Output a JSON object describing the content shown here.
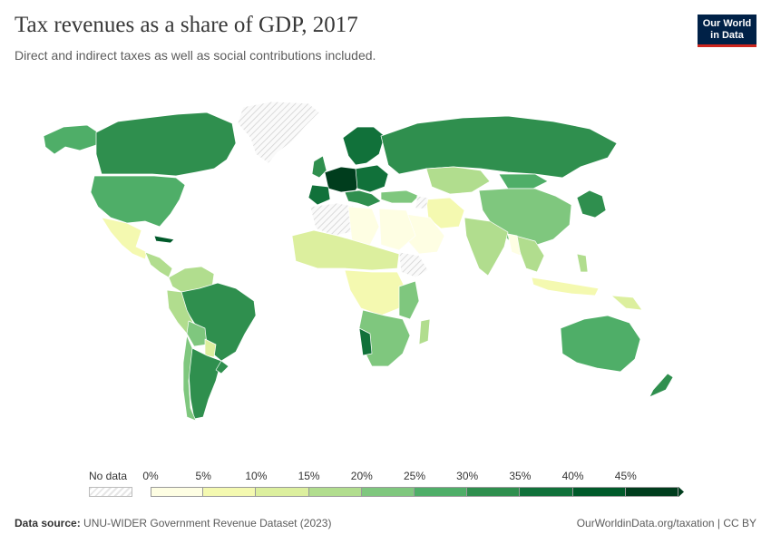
{
  "header": {
    "title": "Tax revenues as a share of GDP, 2017",
    "subtitle": "Direct and indirect taxes as well as social contributions included."
  },
  "logo": {
    "line1": "Our World",
    "line2": "in Data"
  },
  "legend": {
    "no_data_label": "No data",
    "ticks": [
      "0%",
      "5%",
      "10%",
      "15%",
      "20%",
      "25%",
      "30%",
      "35%",
      "40%",
      "45%"
    ],
    "bins": [
      {
        "from": 0,
        "to": 5,
        "color": "#fefee3"
      },
      {
        "from": 5,
        "to": 10,
        "color": "#f4f9b0"
      },
      {
        "from": 10,
        "to": 15,
        "color": "#dcef9e"
      },
      {
        "from": 15,
        "to": 20,
        "color": "#b1dd8e"
      },
      {
        "from": 20,
        "to": 25,
        "color": "#7fc77e"
      },
      {
        "from": 25,
        "to": 30,
        "color": "#4fae68"
      },
      {
        "from": 30,
        "to": 35,
        "color": "#2f8f4e"
      },
      {
        "from": 35,
        "to": 40,
        "color": "#11713a"
      },
      {
        "from": 40,
        "to": 45,
        "color": "#005a2a"
      },
      {
        "from": 45,
        "to": 50,
        "color": "#003d1d"
      }
    ]
  },
  "colors": {
    "no_data_hatch": "#e6e6e6",
    "border": "#ffffff",
    "logo_bg": "#002147",
    "logo_accent": "#ce261e"
  },
  "footer": {
    "source_label": "Data source:",
    "source_text": "UNU-WIDER Government Revenue Dataset (2023)",
    "right_text": "OurWorldinData.org/taxation | CC BY"
  }
}
